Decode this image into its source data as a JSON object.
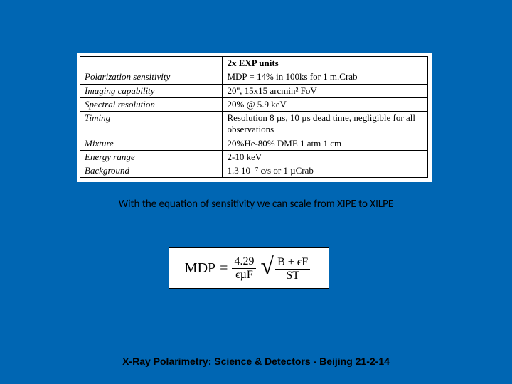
{
  "colors": {
    "slide_bg": "#0066b3",
    "table_bg": "#ffffff",
    "border": "#000000",
    "text": "#000000",
    "eq_box_bg": "#ffffff"
  },
  "table": {
    "header_left": "",
    "header_right": "2x EXP units",
    "rows": [
      {
        "param": "Polarization sensitivity",
        "value": "MDP = 14% in 100ks for 1 m.Crab"
      },
      {
        "param": "Imaging capability",
        "value": "20'', 15x15 arcmin² FoV"
      },
      {
        "param": "Spectral resolution",
        "value": "20% @ 5.9 keV"
      },
      {
        "param": "Timing",
        "value": "Resolution 8 µs, 10 µs dead time, negligible for all observations"
      },
      {
        "param": "Mixture",
        "value": "20%He-80% DME 1 atm 1 cm"
      },
      {
        "param": "Energy range",
        "value": "2-10 keV"
      },
      {
        "param": "Background",
        "value": "1.3 10⁻⁷ c/s or 1 µCrab"
      }
    ],
    "param_fontstyle": "italic",
    "fontsize": 13,
    "col_widths_pct": [
      41,
      59
    ]
  },
  "caption": {
    "text": "With the equation of sensitivity we can scale from XIPE to XILPE",
    "font_family": "Calibri",
    "fontsize": 15
  },
  "equation": {
    "lhs": "MDP",
    "eq_sign": "=",
    "frac1_num": "4.29",
    "frac1_den": "ϵµF",
    "sqrt_num": "B + ϵF",
    "sqrt_den": "ST",
    "fontsize": 20,
    "box_border": "#000000",
    "box_bg": "#ffffff"
  },
  "footer": {
    "text": "X-Ray Polarimetry: Science & Detectors - Beijing 21-2-14",
    "font_family": "Comic Sans MS",
    "fontsize": 14,
    "fontweight": "bold"
  }
}
